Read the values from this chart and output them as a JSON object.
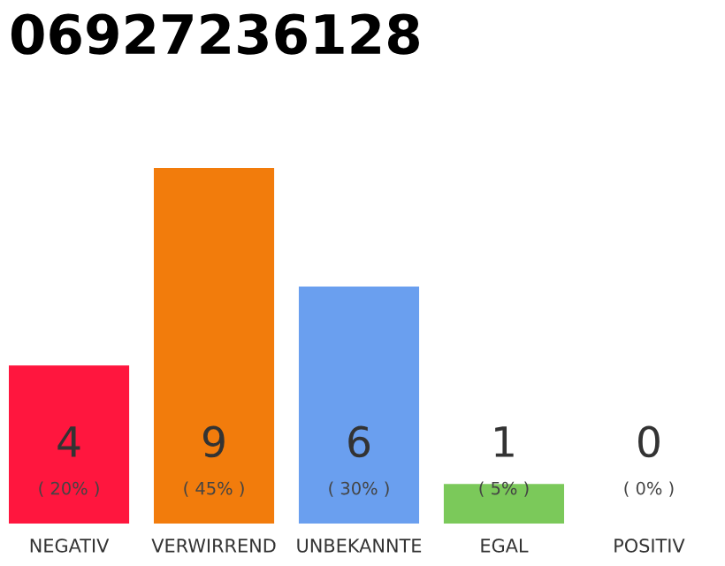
{
  "chart_data": {
    "type": "bar",
    "title": "06927236128",
    "categories": [
      "NEGATIV",
      "VERWIRREND",
      "UNBEKANNTE",
      "EGAL",
      "POSITIV"
    ],
    "values": [
      4,
      9,
      6,
      1,
      0
    ],
    "colors": [
      "#ff163e",
      "#f27c0c",
      "#6a9fef",
      "#7bc95a",
      "#cccccc"
    ],
    "value_labels": [
      "4\n( 20% )",
      "9\n( 45% )",
      "6\n( 30% )",
      "1\n( 5% )",
      "0\n( 0% )"
    ],
    "ylim": [
      0,
      9
    ],
    "grid": false,
    "legend": false
  }
}
